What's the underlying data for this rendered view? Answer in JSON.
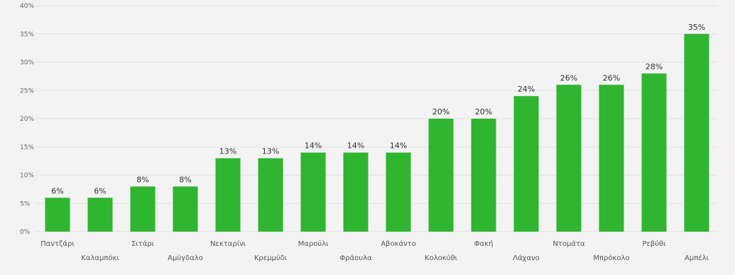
{
  "chart_data": {
    "type": "bar",
    "categories": [
      "Παντζάρι",
      "Καλαμπόκι",
      "Σιτάρι",
      "Αμύγδαλο",
      "Νεκταρίνι",
      "Κρεμμύδι",
      "Μαρούλι",
      "Φράουλα",
      "Αβοκάντο",
      "Κολοκύθι",
      "Φακή",
      "Λάχανο",
      "Ντομάτα",
      "Μπρόκολο",
      "Ρεβύθι",
      "Αμπέλι"
    ],
    "values": [
      6,
      6,
      8,
      8,
      13,
      13,
      14,
      14,
      14,
      20,
      20,
      24,
      26,
      26,
      28,
      35
    ],
    "data_labels": [
      "6%",
      "6%",
      "8%",
      "8%",
      "13%",
      "13%",
      "14%",
      "14%",
      "14%",
      "20%",
      "20%",
      "24%",
      "26%",
      "26%",
      "28%",
      "35%"
    ],
    "y_ticks": [
      0,
      5,
      10,
      15,
      20,
      25,
      30,
      35,
      40
    ],
    "y_tick_labels": [
      "0%",
      "5%",
      "10%",
      "15%",
      "20%",
      "25%",
      "30%",
      "35%",
      "40%"
    ],
    "ylim": [
      0,
      40
    ],
    "grid": true,
    "legend": "none",
    "bar_color": "#2fb52f",
    "grid_color": "#e1e1e1"
  }
}
